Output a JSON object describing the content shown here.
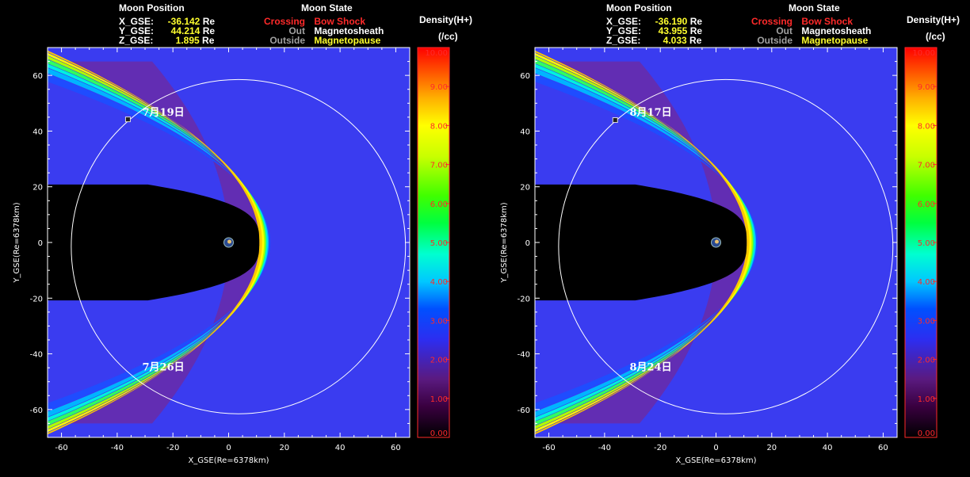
{
  "colors": {
    "background": "#000000",
    "plot_background": "#3a3cf0",
    "highlight_value": "#ffff2e",
    "crossing": "#ff2a2a",
    "inactive_state": "#a0a0a0",
    "colorbar_ticks": "#ff2a2a"
  },
  "chart_data": [
    {
      "type": "heatmap",
      "header": {
        "position_title": "Moon Position",
        "state_title": "Moon State",
        "x_label": "X_GSE:",
        "x_value": "-36.142",
        "x_unit": "Re",
        "y_label": "Y_GSE:",
        "y_value": "44.214",
        "y_unit": "Re",
        "z_label": "Z_GSE:",
        "z_value": "1.895",
        "z_unit": "Re",
        "states": [
          {
            "key": "Crossing",
            "value": "Bow Shock",
            "key_color": "#ff2a2a",
            "value_color": "#ff2a2a"
          },
          {
            "key": "Out",
            "value": "Magnetosheath",
            "key_color": "#a0a0a0",
            "value_color": "#ffffff"
          },
          {
            "key": "Outside",
            "value": "Magnetopause",
            "key_color": "#a0a0a0",
            "value_color": "#ffff2e"
          }
        ]
      },
      "xlabel": "X_GSE(Re=6378km)",
      "ylabel": "Y_GSE(Re=6378km)",
      "xlim": [
        -65,
        65
      ],
      "ylim": [
        -70,
        70
      ],
      "xticks": [
        -60,
        -40,
        -20,
        0,
        20,
        40,
        60
      ],
      "yticks": [
        -60,
        -40,
        -20,
        0,
        20,
        40,
        60
      ],
      "orbit": {
        "center_x": 3.5,
        "center_y": -1.5,
        "radius": 60
      },
      "moon_marker": {
        "x": -36.142,
        "y": 44.214
      },
      "annotations": [
        {
          "text": "7月19日",
          "x": -31,
          "y": 45.5
        },
        {
          "text": "7月26日",
          "x": -31,
          "y": -46
        }
      ],
      "colorbar": {
        "title_line1": "Density(H+)",
        "title_line2": "(/cc)",
        "min": 0,
        "max": 10,
        "tick_labels": [
          "0.00",
          "1.00",
          "2.00",
          "3.00",
          "4.00",
          "5.00",
          "6.00",
          "7.00",
          "8.00",
          "9.00",
          "10.00"
        ]
      }
    },
    {
      "type": "heatmap",
      "header": {
        "position_title": "Moon Position",
        "state_title": "Moon State",
        "x_label": "X_GSE:",
        "x_value": "-36.190",
        "x_unit": "Re",
        "y_label": "Y_GSE:",
        "y_value": "43.955",
        "y_unit": "Re",
        "z_label": "Z_GSE:",
        "z_value": "4.033",
        "z_unit": "Re",
        "states": [
          {
            "key": "Crossing",
            "value": "Bow Shock",
            "key_color": "#ff2a2a",
            "value_color": "#ff2a2a"
          },
          {
            "key": "Out",
            "value": "Magnetosheath",
            "key_color": "#a0a0a0",
            "value_color": "#ffffff"
          },
          {
            "key": "Outside",
            "value": "Magnetopause",
            "key_color": "#a0a0a0",
            "value_color": "#ffff2e"
          }
        ]
      },
      "xlabel": "X_GSE(Re=6378km)",
      "ylabel": "Y_GSE(Re=6378km)",
      "xlim": [
        -65,
        65
      ],
      "ylim": [
        -70,
        70
      ],
      "xticks": [
        -60,
        -40,
        -20,
        0,
        20,
        40,
        60
      ],
      "yticks": [
        -60,
        -40,
        -20,
        0,
        20,
        40,
        60
      ],
      "orbit": {
        "center_x": 3.5,
        "center_y": -1.5,
        "radius": 60
      },
      "moon_marker": {
        "x": -36.19,
        "y": 43.955
      },
      "annotations": [
        {
          "text": "8月17日",
          "x": -31,
          "y": 45.5
        },
        {
          "text": "8月24日",
          "x": -31,
          "y": -46
        }
      ],
      "colorbar": {
        "title_line1": "Density(H+)",
        "title_line2": "(/cc)",
        "min": 0,
        "max": 10,
        "tick_labels": [
          "0.00",
          "1.00",
          "2.00",
          "3.00",
          "4.00",
          "5.00",
          "6.00",
          "7.00",
          "8.00",
          "9.00",
          "10.00"
        ]
      }
    }
  ]
}
